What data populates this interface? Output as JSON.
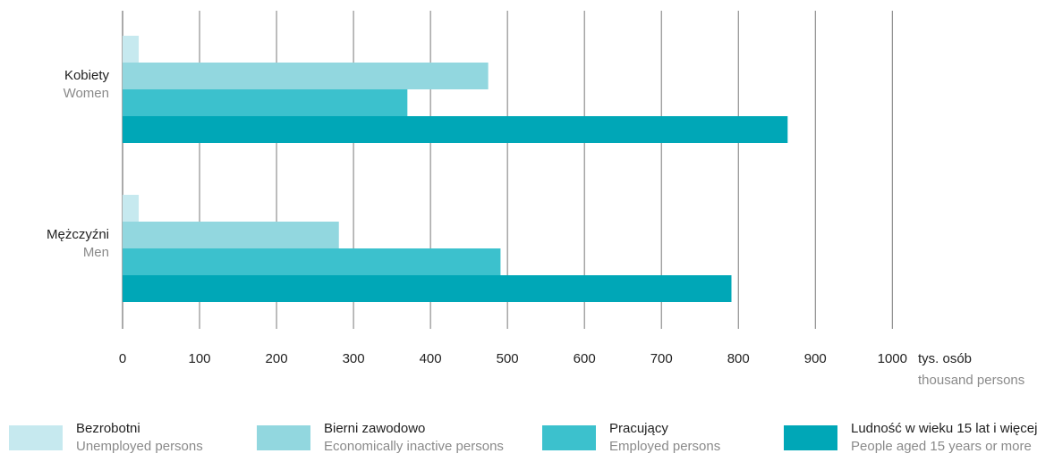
{
  "chart_data": {
    "type": "bar",
    "orientation": "horizontal",
    "categories": [
      {
        "label": "Kobiety",
        "sublabel": "Women"
      },
      {
        "label": "Mężczyźni",
        "sublabel": "Men"
      }
    ],
    "series": [
      {
        "name": "Bezrobotni",
        "name_en": "Unemployed persons",
        "color": "#c6e9ef",
        "values": [
          21,
          21
        ]
      },
      {
        "name": "Bierni zawodowo",
        "name_en": "Economically inactive persons",
        "color": "#92d7df",
        "values": [
          475,
          281
        ]
      },
      {
        "name": "Pracujący",
        "name_en": "Employed persons",
        "color": "#3cc1cd",
        "values": [
          370,
          491
        ]
      },
      {
        "name": "Ludność w wieku 15 lat i więcej",
        "name_en": "People aged 15 years or more",
        "color": "#00a7b7",
        "values": [
          864,
          791
        ]
      }
    ],
    "xlim": [
      0,
      1000
    ],
    "xticks": [
      0,
      100,
      200,
      300,
      400,
      500,
      600,
      700,
      800,
      900,
      1000
    ],
    "unit_label": "tys. osób",
    "unit_label_en": "thousand persons",
    "grid": "vertical",
    "legend_position": "bottom"
  }
}
